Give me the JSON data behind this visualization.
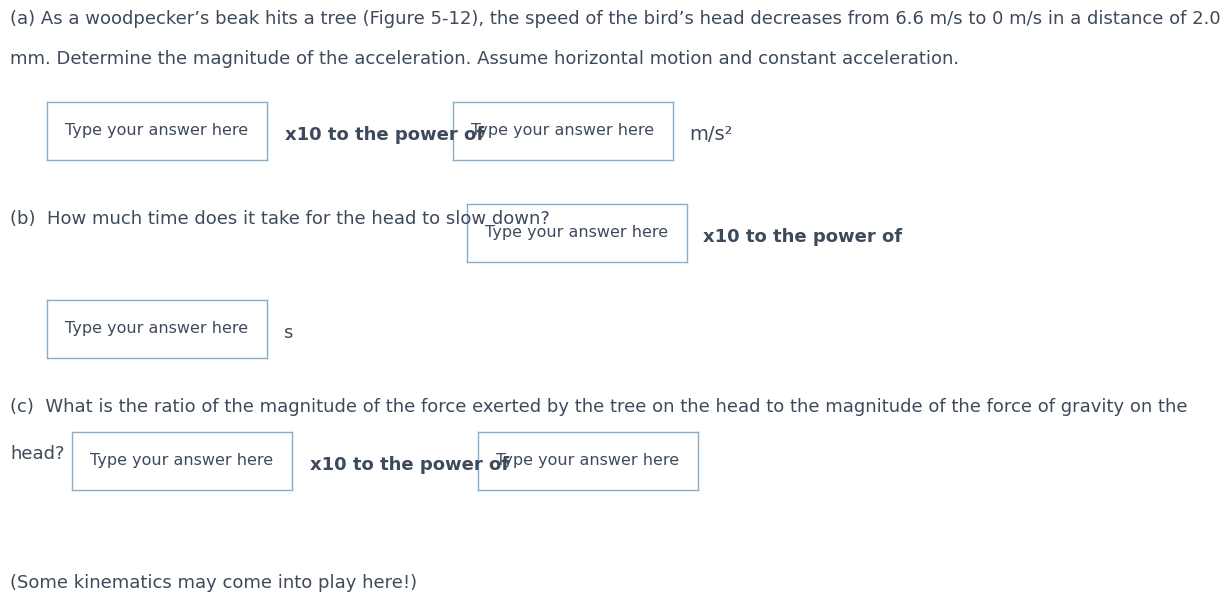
{
  "background_color": "#ffffff",
  "text_color": "#3d4a5c",
  "box_edge_color": "#8aaec8",
  "font_size_main": 13.0,
  "font_size_box": 11.5,
  "font_size_bold": 13.0,
  "line_a1": "(a) As a woodpecker’s beak hits a tree (Figure 5-12), the speed of the bird’s head decreases from 6.6 m/s to 0 m/s in a distance of 2.0",
  "line_a2": "mm. Determine the magnitude of the acceleration. Assume horizontal motion and constant acceleration.",
  "box_placeholder": "Type your answer here",
  "label_x10": "x10 to the power of",
  "label_ms2": "m/s²",
  "line_b": "(b)  How much time does it take for the head to slow down?",
  "label_x10_b": "x10 to the power of",
  "label_s": "s",
  "line_c1": "(c)  What is the ratio of the magnitude of the force exerted by the tree on the head to the magnitude of the force of gravity on the",
  "label_head": "head?",
  "label_x10_c": "x10 to the power of",
  "line_note": "(Some kinematics may come into play here!)"
}
